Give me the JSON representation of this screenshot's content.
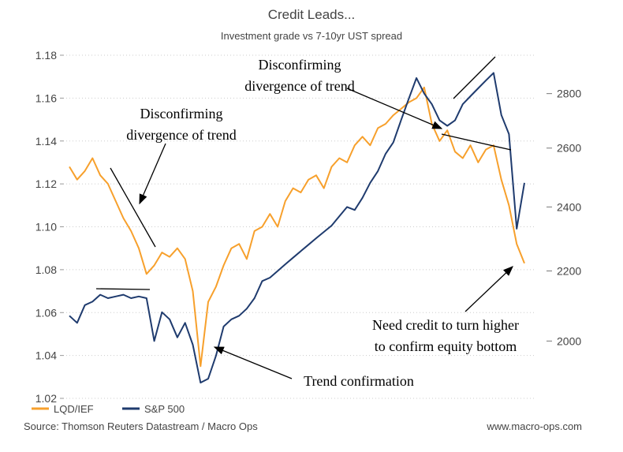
{
  "chart_data": {
    "type": "line",
    "title": "Credit Leads...",
    "subtitle": "Investment grade vs 7-10yr UST spread",
    "source": "Source: Thomson Reuters Datastream / Macro Ops",
    "website": "www.macro-ops.com",
    "ylim": [
      1.02,
      1.18
    ],
    "yticks": [
      1.02,
      1.04,
      1.06,
      1.08,
      {
        "value": 1.1,
        "label": "1.10"
      },
      1.12,
      1.14,
      1.16,
      1.18
    ],
    "y2lim": [
      1850,
      2950
    ],
    "y2ticks": [
      2000,
      2200,
      2400,
      2600,
      2800
    ],
    "y2log": true,
    "grid": true,
    "legend": "bottom-left",
    "annotations": [
      {
        "lines": [
          "Disconfirming",
          "divergence of trend"
        ]
      },
      {
        "lines": [
          "Disconfirming",
          "divergence of trend"
        ]
      },
      {
        "lines": [
          "Trend confirmation"
        ]
      },
      {
        "lines": [
          "Need credit to turn higher",
          "to confirm equity bottom"
        ]
      }
    ],
    "series": [
      {
        "name": "LQD/IEF",
        "color": "#f7a02c",
        "axis": "y",
        "values": [
          1.128,
          1.122,
          1.126,
          1.132,
          1.124,
          1.12,
          1.112,
          1.104,
          1.098,
          1.09,
          1.078,
          1.082,
          1.088,
          1.086,
          1.09,
          1.085,
          1.07,
          1.035,
          1.065,
          1.072,
          1.082,
          1.09,
          1.092,
          1.085,
          1.098,
          1.1,
          1.106,
          1.1,
          1.112,
          1.118,
          1.116,
          1.122,
          1.124,
          1.118,
          1.128,
          1.132,
          1.13,
          1.138,
          1.142,
          1.138,
          1.146,
          1.148,
          1.152,
          1.155,
          1.158,
          1.16,
          1.165,
          1.148,
          1.14,
          1.145,
          1.135,
          1.132,
          1.138,
          1.13,
          1.136,
          1.138,
          1.122,
          1.11,
          1.092,
          1.083
        ]
      },
      {
        "name": "S&P 500",
        "color": "#1f3b6e",
        "axis": "y2",
        "values": [
          2070,
          2050,
          2100,
          2110,
          2130,
          2120,
          2125,
          2130,
          2120,
          2125,
          2120,
          2000,
          2080,
          2060,
          2010,
          2050,
          1990,
          1890,
          1900,
          1960,
          2040,
          2060,
          2070,
          2090,
          2120,
          2170,
          2180,
          2200,
          2220,
          2240,
          2260,
          2280,
          2300,
          2320,
          2340,
          2370,
          2400,
          2390,
          2430,
          2480,
          2520,
          2580,
          2620,
          2700,
          2780,
          2860,
          2800,
          2760,
          2700,
          2680,
          2700,
          2760,
          2790,
          2820,
          2850,
          2880,
          2720,
          2650,
          2330,
          2480
        ]
      }
    ]
  }
}
